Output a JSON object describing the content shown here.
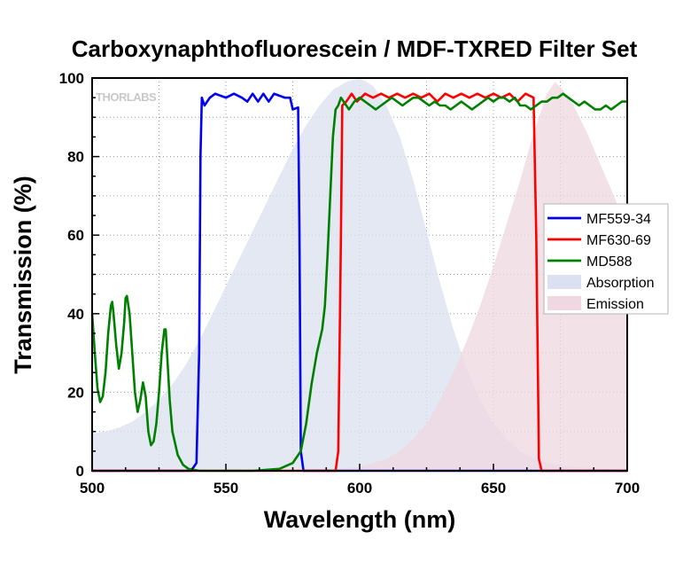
{
  "chart_data": {
    "type": "line",
    "title": "Carboxynaphthofluorescein / MDF-TXRED Filter Set",
    "xlabel": "Wavelength (nm)",
    "ylabel": "Transmission (%)",
    "xlim": [
      500,
      700
    ],
    "ylim": [
      0,
      100
    ],
    "xticks": [
      500,
      550,
      600,
      650,
      700
    ],
    "yticks": [
      0,
      20,
      40,
      60,
      80,
      100
    ],
    "grid": true,
    "legend_position": "right",
    "watermark": "THORLABS",
    "series": [
      {
        "name": "MF559-34",
        "kind": "line",
        "color": "#0000ee",
        "points": [
          [
            500,
            0
          ],
          [
            537,
            0
          ],
          [
            539,
            2
          ],
          [
            540,
            30
          ],
          [
            540.5,
            80
          ],
          [
            541,
            95
          ],
          [
            542,
            93
          ],
          [
            544,
            95
          ],
          [
            546,
            96
          ],
          [
            550,
            95
          ],
          [
            553,
            96
          ],
          [
            556,
            95
          ],
          [
            558,
            94
          ],
          [
            560,
            96
          ],
          [
            562,
            94
          ],
          [
            564,
            96
          ],
          [
            566,
            94
          ],
          [
            568,
            96
          ],
          [
            572,
            95
          ],
          [
            574,
            95
          ],
          [
            575,
            92
          ],
          [
            577,
            92.5
          ],
          [
            577.5,
            60
          ],
          [
            578,
            5
          ],
          [
            579,
            0
          ],
          [
            700,
            0
          ]
        ]
      },
      {
        "name": "MF630-69",
        "kind": "line",
        "color": "#ff0000",
        "points": [
          [
            500,
            0
          ],
          [
            591,
            0
          ],
          [
            592,
            5
          ],
          [
            593,
            60
          ],
          [
            593.5,
            93
          ],
          [
            595,
            94
          ],
          [
            597,
            96
          ],
          [
            599,
            94
          ],
          [
            602,
            96
          ],
          [
            605,
            95
          ],
          [
            608,
            96
          ],
          [
            611,
            95
          ],
          [
            614,
            96
          ],
          [
            617,
            95
          ],
          [
            620,
            96
          ],
          [
            623,
            95
          ],
          [
            626,
            96
          ],
          [
            629,
            94
          ],
          [
            632,
            96
          ],
          [
            635,
            95
          ],
          [
            638,
            96
          ],
          [
            641,
            95
          ],
          [
            644,
            96
          ],
          [
            647,
            95
          ],
          [
            650,
            96
          ],
          [
            653,
            95
          ],
          [
            656,
            96
          ],
          [
            659,
            94
          ],
          [
            662,
            96
          ],
          [
            665,
            95
          ],
          [
            666,
            60
          ],
          [
            667,
            3
          ],
          [
            668,
            0
          ],
          [
            700,
            0
          ]
        ]
      },
      {
        "name": "MD588",
        "kind": "line",
        "color": "#008000",
        "points": [
          [
            500,
            40
          ],
          [
            501,
            30
          ],
          [
            502,
            21
          ],
          [
            503,
            17.5
          ],
          [
            504,
            19
          ],
          [
            505,
            25
          ],
          [
            506,
            35
          ],
          [
            507,
            42
          ],
          [
            507.5,
            43
          ],
          [
            508,
            40
          ],
          [
            509,
            32
          ],
          [
            510,
            26
          ],
          [
            511,
            30
          ],
          [
            512,
            38
          ],
          [
            512.5,
            44
          ],
          [
            513,
            44.5
          ],
          [
            514,
            40
          ],
          [
            515,
            30
          ],
          [
            516,
            20
          ],
          [
            517,
            15
          ],
          [
            518,
            18
          ],
          [
            519,
            22.5
          ],
          [
            520,
            19
          ],
          [
            521,
            10
          ],
          [
            522,
            6.5
          ],
          [
            523,
            7.5
          ],
          [
            524,
            12
          ],
          [
            525,
            20
          ],
          [
            526,
            30
          ],
          [
            527,
            36
          ],
          [
            527.5,
            36
          ],
          [
            528,
            30
          ],
          [
            529,
            18
          ],
          [
            530,
            10
          ],
          [
            532,
            4
          ],
          [
            534,
            1.5
          ],
          [
            536,
            0.5
          ],
          [
            540,
            0
          ],
          [
            560,
            0
          ],
          [
            570,
            0.5
          ],
          [
            575,
            2
          ],
          [
            578,
            5
          ],
          [
            580,
            12
          ],
          [
            582,
            22
          ],
          [
            584,
            30
          ],
          [
            586,
            36
          ],
          [
            587,
            42
          ],
          [
            588,
            55
          ],
          [
            589,
            70
          ],
          [
            590,
            85
          ],
          [
            591,
            92
          ],
          [
            592,
            93
          ],
          [
            593,
            95
          ],
          [
            594,
            94
          ],
          [
            596,
            92
          ],
          [
            598,
            94
          ],
          [
            600,
            95
          ],
          [
            602,
            94
          ],
          [
            604,
            93
          ],
          [
            606,
            92
          ],
          [
            608,
            93
          ],
          [
            610,
            94
          ],
          [
            612,
            95
          ],
          [
            614,
            94
          ],
          [
            616,
            93
          ],
          [
            618,
            94
          ],
          [
            620,
            95
          ],
          [
            622,
            95
          ],
          [
            624,
            94
          ],
          [
            626,
            93
          ],
          [
            628,
            94
          ],
          [
            630,
            93
          ],
          [
            632,
            93
          ],
          [
            634,
            92
          ],
          [
            636,
            93
          ],
          [
            638,
            94
          ],
          [
            640,
            93
          ],
          [
            642,
            92
          ],
          [
            644,
            93
          ],
          [
            646,
            94
          ],
          [
            648,
            95
          ],
          [
            650,
            94
          ],
          [
            652,
            95
          ],
          [
            654,
            95
          ],
          [
            656,
            94
          ],
          [
            658,
            95
          ],
          [
            660,
            93
          ],
          [
            662,
            93
          ],
          [
            664,
            92
          ],
          [
            666,
            93
          ],
          [
            668,
            94
          ],
          [
            670,
            94
          ],
          [
            672,
            95
          ],
          [
            674,
            95
          ],
          [
            676,
            96
          ],
          [
            678,
            95
          ],
          [
            680,
            94
          ],
          [
            682,
            93
          ],
          [
            684,
            94
          ],
          [
            686,
            93
          ],
          [
            688,
            92
          ],
          [
            690,
            92
          ],
          [
            692,
            93
          ],
          [
            694,
            92
          ],
          [
            696,
            93
          ],
          [
            698,
            94
          ],
          [
            700,
            94
          ]
        ]
      },
      {
        "name": "Absorption",
        "kind": "area",
        "color": "#dbe1f0",
        "points": [
          [
            500,
            9.5
          ],
          [
            505,
            10
          ],
          [
            510,
            11
          ],
          [
            515,
            12.5
          ],
          [
            520,
            15
          ],
          [
            525,
            18
          ],
          [
            530,
            22
          ],
          [
            535,
            27
          ],
          [
            540,
            33
          ],
          [
            545,
            40
          ],
          [
            550,
            47
          ],
          [
            555,
            54
          ],
          [
            560,
            61
          ],
          [
            565,
            68
          ],
          [
            570,
            75
          ],
          [
            575,
            82
          ],
          [
            580,
            88
          ],
          [
            585,
            93
          ],
          [
            590,
            97
          ],
          [
            595,
            99
          ],
          [
            600,
            100
          ],
          [
            605,
            98
          ],
          [
            610,
            93
          ],
          [
            615,
            85
          ],
          [
            620,
            74
          ],
          [
            625,
            61
          ],
          [
            630,
            48
          ],
          [
            635,
            36
          ],
          [
            640,
            26
          ],
          [
            645,
            18
          ],
          [
            650,
            12
          ],
          [
            655,
            8
          ],
          [
            660,
            5
          ],
          [
            665,
            3
          ],
          [
            670,
            2
          ],
          [
            680,
            1
          ],
          [
            690,
            0.5
          ],
          [
            700,
            0.3
          ]
        ]
      },
      {
        "name": "Emission",
        "kind": "area",
        "color": "#f0d8e2",
        "points": [
          [
            500,
            0
          ],
          [
            590,
            0.5
          ],
          [
            600,
            1
          ],
          [
            605,
            2
          ],
          [
            610,
            3
          ],
          [
            615,
            5
          ],
          [
            620,
            8
          ],
          [
            625,
            12
          ],
          [
            630,
            18
          ],
          [
            635,
            25
          ],
          [
            640,
            33
          ],
          [
            645,
            42
          ],
          [
            650,
            52
          ],
          [
            655,
            63
          ],
          [
            660,
            74
          ],
          [
            665,
            86
          ],
          [
            670,
            96
          ],
          [
            673,
            99
          ],
          [
            676,
            97
          ],
          [
            680,
            93
          ],
          [
            685,
            86
          ],
          [
            690,
            78
          ],
          [
            695,
            70
          ],
          [
            700,
            62
          ]
        ]
      }
    ]
  }
}
